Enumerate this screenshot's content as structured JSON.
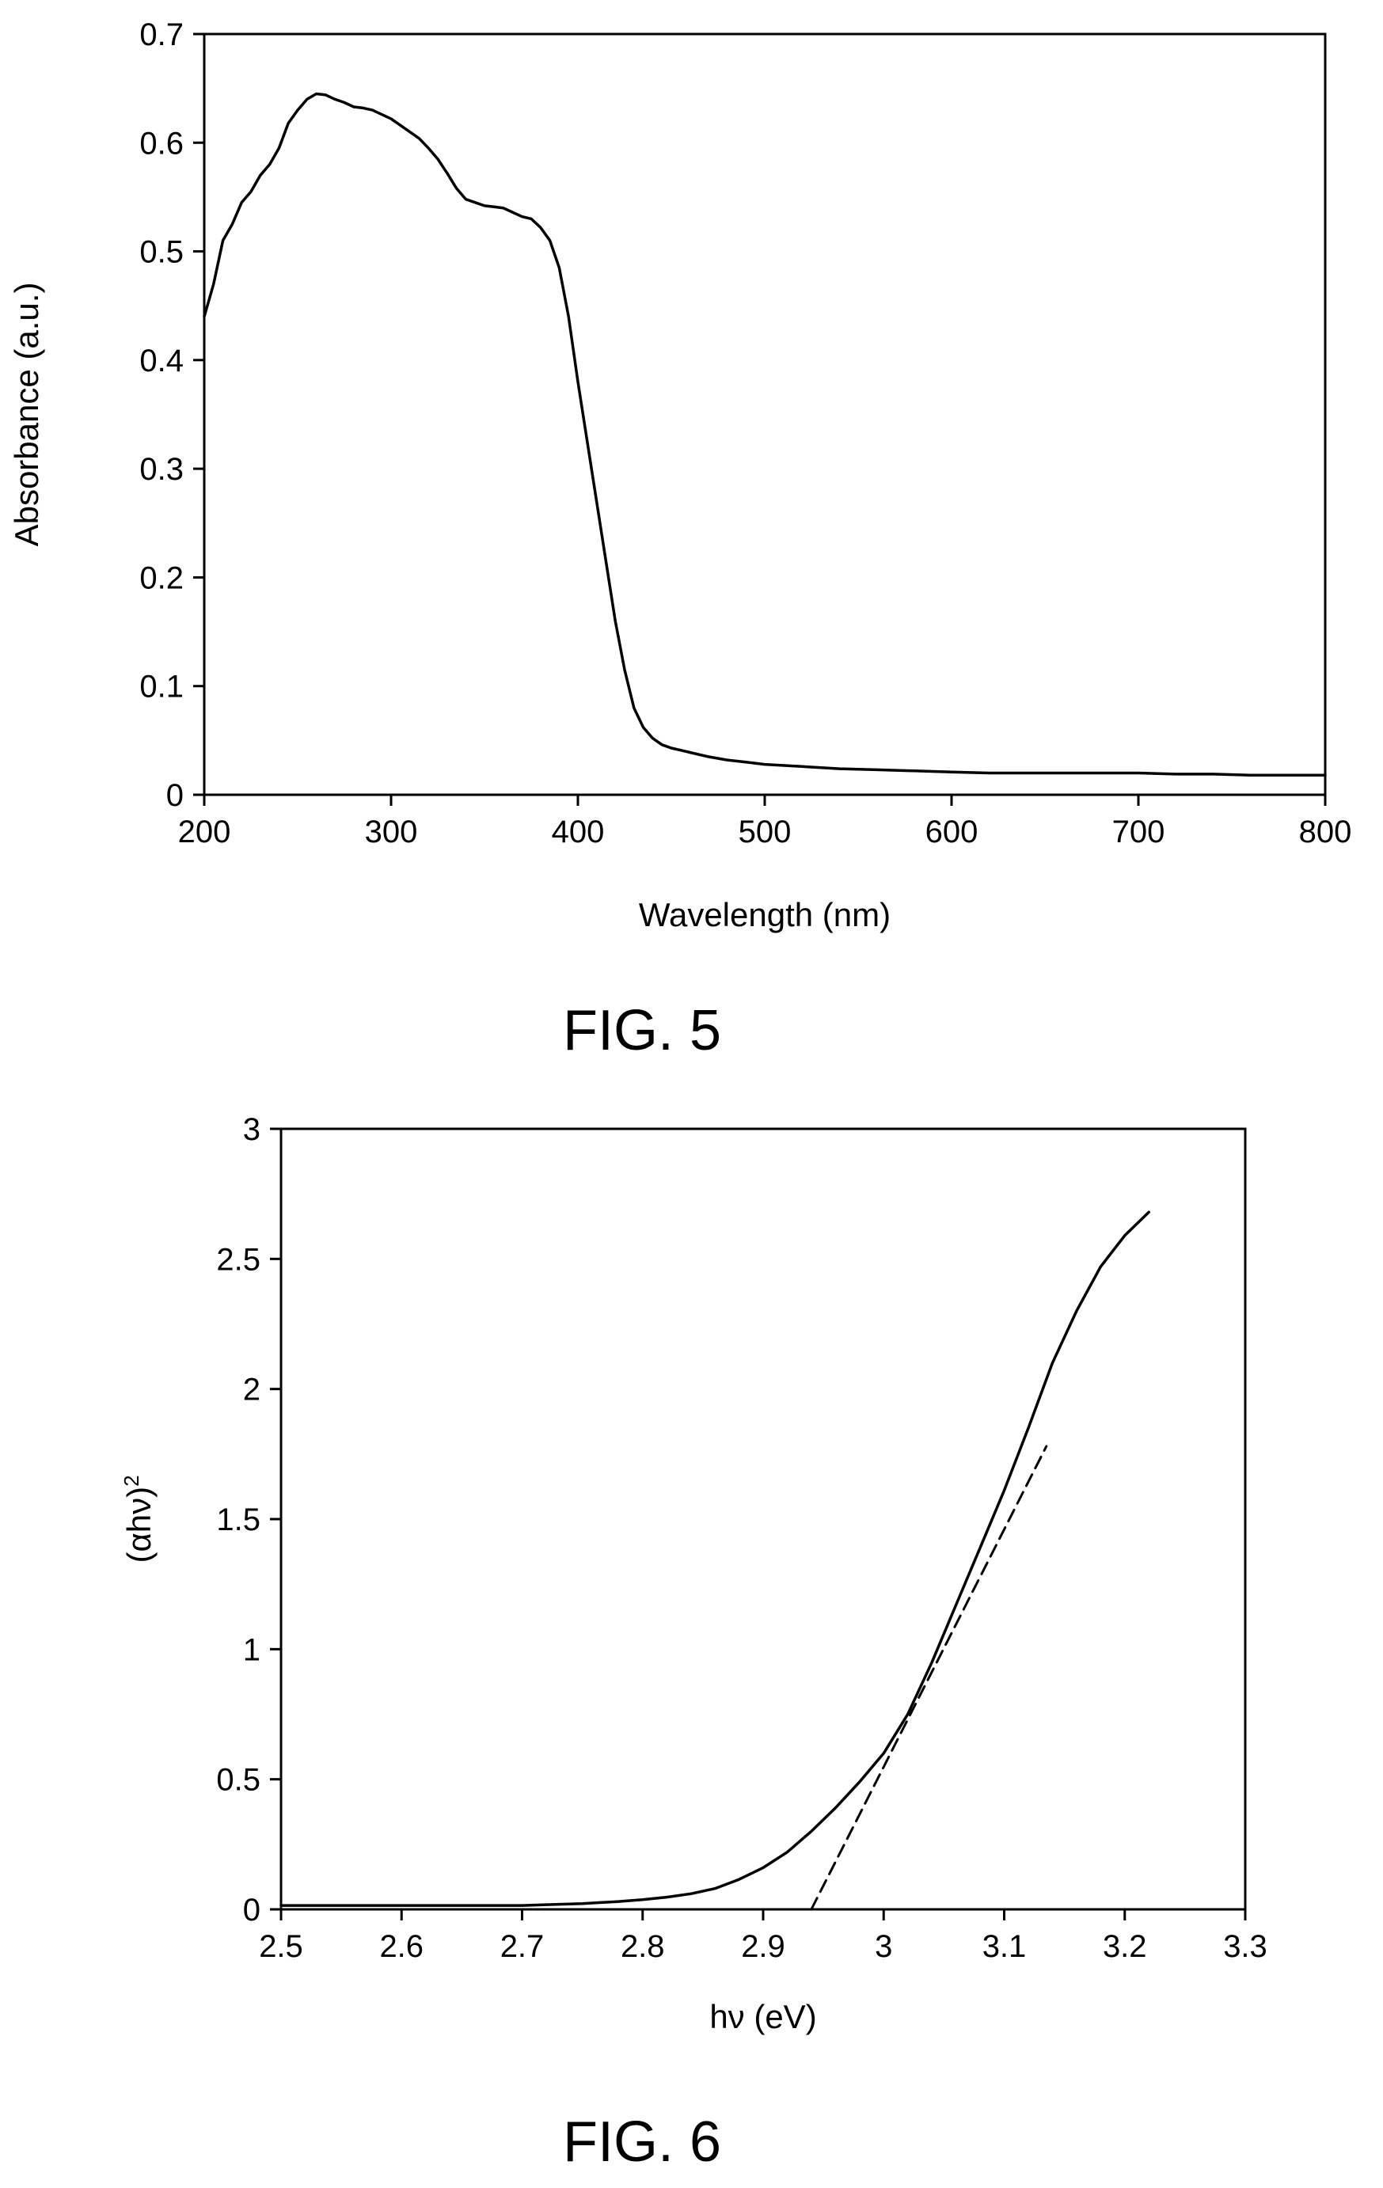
{
  "chart_data": [
    {
      "type": "line",
      "figure_label": "FIG. 5",
      "title": "",
      "xlabel": "Wavelength (nm)",
      "ylabel": "Absorbance (a.u.)",
      "xlim": [
        200,
        800
      ],
      "ylim": [
        0,
        0.7
      ],
      "x_ticks": [
        200,
        300,
        400,
        500,
        600,
        700,
        800
      ],
      "x_tick_labels": [
        "200",
        "300",
        "400",
        "500",
        "600",
        "700",
        "800"
      ],
      "y_ticks": [
        0,
        0.1,
        0.2,
        0.3,
        0.4,
        0.5,
        0.6,
        0.7
      ],
      "y_tick_labels": [
        "0",
        "0.1",
        "0.2",
        "0.3",
        "0.4",
        "0.5",
        "0.6",
        "0.7"
      ],
      "grid": false,
      "series": [
        {
          "line_style": "solid",
          "color": "#000000",
          "x": [
            200,
            205,
            210,
            215,
            220,
            225,
            230,
            235,
            240,
            245,
            250,
            255,
            260,
            265,
            270,
            275,
            280,
            285,
            290,
            295,
            300,
            305,
            310,
            315,
            320,
            325,
            330,
            335,
            340,
            345,
            350,
            355,
            360,
            365,
            370,
            375,
            380,
            385,
            390,
            395,
            400,
            405,
            410,
            415,
            420,
            425,
            430,
            435,
            440,
            445,
            450,
            455,
            460,
            470,
            480,
            490,
            500,
            520,
            540,
            560,
            580,
            600,
            620,
            640,
            660,
            680,
            700,
            720,
            740,
            760,
            780,
            800
          ],
          "y": [
            0.44,
            0.47,
            0.51,
            0.525,
            0.545,
            0.555,
            0.57,
            0.58,
            0.595,
            0.618,
            0.63,
            0.64,
            0.645,
            0.644,
            0.64,
            0.637,
            0.633,
            0.632,
            0.63,
            0.626,
            0.622,
            0.616,
            0.61,
            0.604,
            0.595,
            0.585,
            0.572,
            0.558,
            0.548,
            0.545,
            0.542,
            0.541,
            0.54,
            0.536,
            0.532,
            0.53,
            0.522,
            0.51,
            0.485,
            0.44,
            0.38,
            0.325,
            0.27,
            0.215,
            0.16,
            0.115,
            0.08,
            0.062,
            0.052,
            0.046,
            0.043,
            0.041,
            0.039,
            0.035,
            0.032,
            0.03,
            0.028,
            0.026,
            0.024,
            0.023,
            0.022,
            0.021,
            0.02,
            0.02,
            0.02,
            0.02,
            0.02,
            0.019,
            0.019,
            0.018,
            0.018,
            0.018
          ]
        }
      ]
    },
    {
      "type": "line",
      "figure_label": "FIG. 6",
      "title": "",
      "xlabel": "hν (eV)",
      "ylabel": "(αhν)",
      "ylabel_superscript": "2",
      "xlim": [
        2.5,
        3.3
      ],
      "ylim": [
        0,
        3
      ],
      "x_ticks": [
        2.5,
        2.6,
        2.7,
        2.8,
        2.9,
        3.0,
        3.1,
        3.2,
        3.3
      ],
      "x_tick_labels": [
        "2.5",
        "2.6",
        "2.7",
        "2.8",
        "2.9",
        "3",
        "3.1",
        "3.2",
        "3.3"
      ],
      "y_ticks": [
        0,
        0.5,
        1,
        1.5,
        2,
        2.5,
        3
      ],
      "y_tick_labels": [
        "0",
        "0.5",
        "1",
        "1.5",
        "2",
        "2.5",
        "3"
      ],
      "grid": false,
      "series": [
        {
          "line_style": "solid",
          "color": "#000000",
          "x": [
            2.5,
            2.55,
            2.6,
            2.65,
            2.7,
            2.72,
            2.75,
            2.78,
            2.8,
            2.82,
            2.84,
            2.86,
            2.88,
            2.9,
            2.92,
            2.94,
            2.96,
            2.98,
            3.0,
            3.02,
            3.04,
            3.06,
            3.08,
            3.1,
            3.12,
            3.14,
            3.16,
            3.18,
            3.2,
            3.22
          ],
          "y": [
            0.015,
            0.015,
            0.015,
            0.015,
            0.015,
            0.018,
            0.022,
            0.03,
            0.037,
            0.047,
            0.06,
            0.08,
            0.115,
            0.16,
            0.22,
            0.3,
            0.39,
            0.49,
            0.6,
            0.75,
            0.95,
            1.17,
            1.39,
            1.61,
            1.85,
            2.1,
            2.3,
            2.47,
            2.59,
            2.68
          ]
        },
        {
          "line_style": "dashed",
          "color": "#000000",
          "x": [
            2.94,
            3.135
          ],
          "y": [
            0.0,
            1.78
          ]
        }
      ]
    }
  ]
}
